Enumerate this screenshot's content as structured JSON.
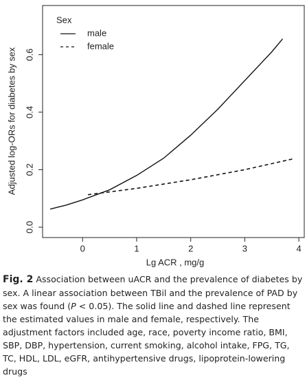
{
  "chart_data": {
    "type": "line",
    "xlabel": "Lg ACR , mg/g",
    "ylabel": "Adjusted log-ORs for diabetes by sex",
    "legend_title": "Sex",
    "legend": "top-left",
    "xlim": [
      -0.74,
      4.1
    ],
    "ylim": [
      -0.036,
      0.771
    ],
    "xticks": [
      0,
      1,
      2,
      3,
      4
    ],
    "yticks": [
      {
        "value": 0,
        "label": "0.0"
      },
      0.2,
      0.4,
      0.6
    ],
    "series": [
      {
        "name": "male",
        "color": "#111111",
        "dash": "solid",
        "x": [
          -0.6,
          -0.3,
          0,
          0.5,
          1,
          1.5,
          2,
          2.5,
          3,
          3.5,
          3.7
        ],
        "values": [
          0.063,
          0.077,
          0.095,
          0.13,
          0.18,
          0.24,
          0.32,
          0.41,
          0.51,
          0.61,
          0.655
        ]
      },
      {
        "name": "female",
        "color": "#111111",
        "dash": "dashed",
        "x": [
          0.1,
          1,
          2,
          3,
          3.9
        ],
        "values": [
          0.113,
          0.135,
          0.165,
          0.2,
          0.238
        ]
      }
    ]
  },
  "caption": {
    "label": "Fig. 2",
    "text_before": "Association between uACR and the prevalence of diabetes by sex. A linear association between TBil and the prevalence of PAD by sex was found (",
    "italic": "P",
    "text_after": " < 0.05). The solid line and dashed line represent the estimated values in male and female, respectively. The adjustment factors included age, race, poverty income ratio, BMI, SBP, DBP, hypertension, current smoking, alcohol intake, FPG, TG, TC, HDL, LDL, eGFR, antihypertensive drugs, lipoprotein-lowering drugs"
  }
}
